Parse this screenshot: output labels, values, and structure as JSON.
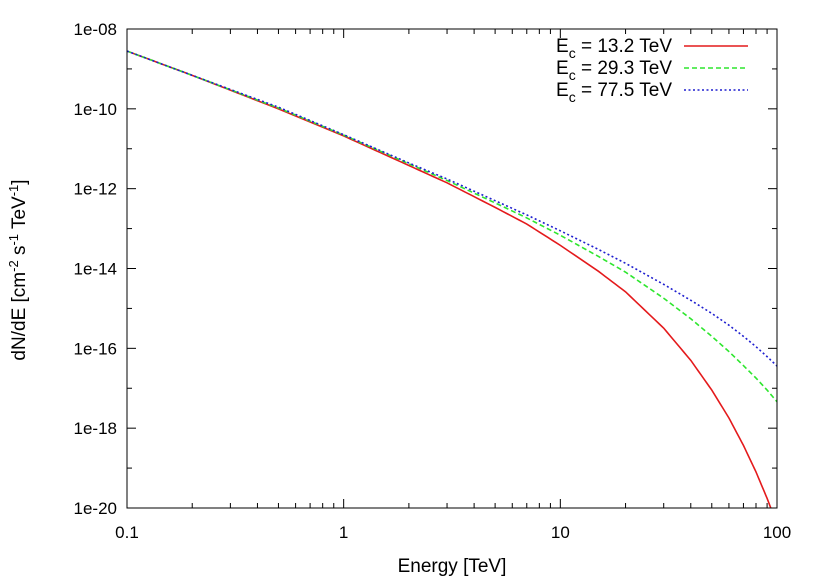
{
  "chart_data": {
    "type": "line",
    "title": "",
    "xlabel": "Energy [TeV]",
    "ylabel": {
      "base": "dN/dE [cm",
      "sup1": "-2",
      "mid1": " s",
      "sup2": "-1",
      "mid2": " TeV",
      "sup3": "-1",
      "end": "]"
    },
    "x_scale": "log",
    "y_scale": "log",
    "xlim": [
      0.1,
      100
    ],
    "ylim": [
      1e-20,
      1e-08
    ],
    "x_ticks": [
      {
        "value": 0.1,
        "label": "0.1"
      },
      {
        "value": 1,
        "label": "1"
      },
      {
        "value": 10,
        "label": "10"
      },
      {
        "value": 100,
        "label": "100"
      }
    ],
    "y_ticks": [
      {
        "value": 1e-20,
        "label": "1e-20"
      },
      {
        "value": 1e-18,
        "label": "1e-18"
      },
      {
        "value": 1e-16,
        "label": "1e-16"
      },
      {
        "value": 1e-14,
        "label": "1e-14"
      },
      {
        "value": 1e-12,
        "label": "1e-12"
      },
      {
        "value": 1e-10,
        "label": "1e-10"
      },
      {
        "value": 1e-08,
        "label": "1e-08"
      }
    ],
    "grid": false,
    "legend_position": "top-right",
    "series": [
      {
        "name": "E_c = 13.2 TeV",
        "legend": {
          "pre": "E",
          "sub": "c",
          "post": " = 13.2 TeV"
        },
        "color": "#e41a1c",
        "dash": "solid",
        "cutoff_TeV": 13.2,
        "x": [
          0.1,
          0.2,
          0.5,
          1,
          2,
          3,
          5,
          7,
          10,
          15,
          20,
          30,
          40,
          50,
          60,
          70,
          80,
          90,
          100
        ],
        "y": [
          2.8e-09,
          6.9e-10,
          1e-10,
          2.1e-11,
          3.8e-12,
          1.4e-12,
          3.4e-13,
          1.3e-13,
          3.8e-14,
          8.5e-15,
          2.6e-15,
          3.2e-16,
          5e-17,
          9e-18,
          1.8e-18,
          3.7e-19,
          8e-20,
          1.75e-20,
          3.9e-21
        ]
      },
      {
        "name": "E_c = 29.3 TeV",
        "legend": {
          "pre": "E",
          "sub": "c",
          "post": " = 29.3 TeV"
        },
        "color": "#2ee62e",
        "dash": "dashed",
        "cutoff_TeV": 29.3,
        "x": [
          0.1,
          0.2,
          0.5,
          1,
          2,
          3,
          5,
          7,
          10,
          15,
          20,
          30,
          40,
          50,
          60,
          70,
          80,
          90,
          100
        ],
        "y": [
          2.8e-09,
          6.9e-10,
          1.05e-10,
          2.2e-11,
          4.2e-12,
          1.6e-12,
          4.4e-13,
          1.85e-13,
          6.8e-14,
          2e-14,
          8.1e-15,
          1.8e-15,
          5.5e-16,
          2e-16,
          8.3e-17,
          3.7e-17,
          1.8e-17,
          9e-18,
          4.6e-18
        ]
      },
      {
        "name": "E_c = 77.5 TeV",
        "legend": {
          "pre": "E",
          "sub": "c",
          "post": " = 77.5 TeV"
        },
        "color": "#1f1fcf",
        "dash": "dotted",
        "cutoff_TeV": 77.5,
        "x": [
          0.1,
          0.2,
          0.5,
          1,
          2,
          3,
          5,
          7,
          10,
          15,
          20,
          30,
          40,
          50,
          60,
          70,
          80,
          90,
          100
        ],
        "y": [
          2.8e-09,
          6.9e-10,
          1.1e-10,
          2.25e-11,
          4.4e-12,
          1.75e-12,
          5e-13,
          2.2e-13,
          8.8e-14,
          3e-14,
          1.35e-14,
          4e-15,
          1.6e-15,
          7.5e-16,
          3.8e-16,
          2e-16,
          1.1e-16,
          6.2e-17,
          3.6e-17
        ]
      }
    ]
  }
}
